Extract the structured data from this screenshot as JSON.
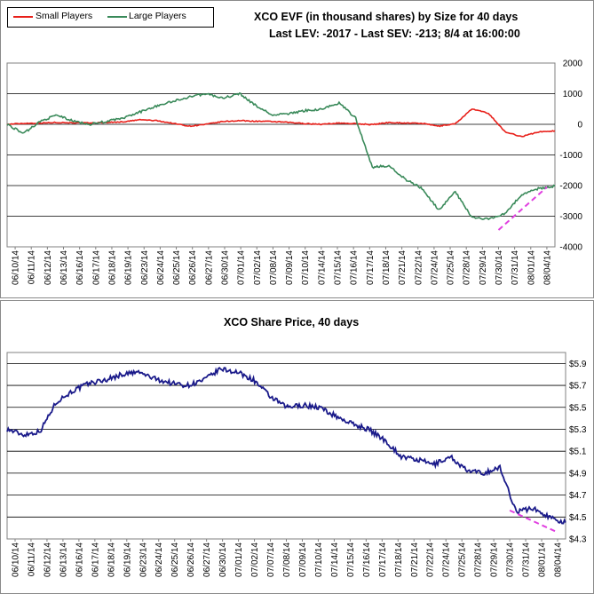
{
  "colors": {
    "small_players": "#e8201a",
    "large_players": "#3a8a5a",
    "share_price": "#1a1a8a",
    "trend": "#e040e0"
  },
  "chart_data": [
    {
      "type": "line",
      "title": "XCO EVF (in thousand shares) by Size for 40 days",
      "subtitle": "Last LEV: -2017 - Last SEV: -213; 8/4 at 16:00:00",
      "legend_position": "top-left",
      "grid": true,
      "ylim": [
        -4000,
        2000
      ],
      "yticks": [
        "2000",
        "1000",
        "0",
        "-1000",
        "-2000",
        "-3000",
        "-4000"
      ],
      "x": [
        "06/10/14",
        "06/11/14",
        "06/12/14",
        "06/13/14",
        "06/16/14",
        "06/17/14",
        "06/18/14",
        "06/19/14",
        "06/23/14",
        "06/24/14",
        "06/25/14",
        "06/26/14",
        "06/27/14",
        "06/30/14",
        "07/01/14",
        "07/02/14",
        "07/08/14",
        "07/09/14",
        "07/10/14",
        "07/14/14",
        "07/15/14",
        "07/16/14",
        "07/17/14",
        "07/18/14",
        "07/21/14",
        "07/22/14",
        "07/24/14",
        "07/25/14",
        "07/28/14",
        "07/29/14",
        "07/30/14",
        "07/31/14",
        "08/01/14",
        "08/04/14"
      ],
      "series": [
        {
          "name": "Small Players",
          "values": [
            0,
            30,
            40,
            60,
            50,
            40,
            60,
            80,
            150,
            120,
            30,
            -60,
            0,
            90,
            120,
            100,
            90,
            60,
            20,
            0,
            40,
            20,
            -10,
            60,
            40,
            30,
            -60,
            20,
            500,
            360,
            -250,
            -400,
            -250,
            -213
          ]
        },
        {
          "name": "Large Players",
          "values": [
            0,
            -300,
            100,
            300,
            100,
            0,
            100,
            200,
            400,
            600,
            750,
            900,
            1000,
            850,
            1000,
            600,
            300,
            350,
            450,
            500,
            700,
            200,
            -1400,
            -1350,
            -1800,
            -2100,
            -2800,
            -2200,
            -3050,
            -3100,
            -2900,
            -2300,
            -2100,
            -2017
          ]
        }
      ],
      "trendline": {
        "from": [
          "07/30/14",
          -3450
        ],
        "to": [
          "08/04/14",
          -2050
        ]
      }
    },
    {
      "type": "line",
      "title": "XCO Share Price, 40 days",
      "grid": true,
      "ylim": [
        4.3,
        6.0
      ],
      "yticks": [
        "$5.9",
        "$5.7",
        "$5.5",
        "$5.3",
        "$5.1",
        "$4.9",
        "$4.7",
        "$4.5",
        "$4.3"
      ],
      "x": [
        "06/10/14",
        "06/11/14",
        "06/12/14",
        "06/13/14",
        "06/16/14",
        "06/17/14",
        "06/18/14",
        "06/19/14",
        "06/23/14",
        "06/24/14",
        "06/25/14",
        "06/26/14",
        "06/27/14",
        "06/30/14",
        "07/01/14",
        "07/02/14",
        "07/07/14",
        "07/08/14",
        "07/09/14",
        "07/10/14",
        "07/14/14",
        "07/15/14",
        "07/16/14",
        "07/17/14",
        "07/18/14",
        "07/21/14",
        "07/22/14",
        "07/24/14",
        "07/25/14",
        "07/28/14",
        "07/29/14",
        "07/30/14",
        "07/31/14",
        "08/01/14",
        "08/04/14"
      ],
      "series": [
        {
          "name": "",
          "values": [
            5.3,
            5.25,
            5.28,
            5.55,
            5.65,
            5.72,
            5.75,
            5.8,
            5.82,
            5.76,
            5.72,
            5.7,
            5.75,
            5.85,
            5.82,
            5.75,
            5.6,
            5.5,
            5.52,
            5.5,
            5.42,
            5.35,
            5.3,
            5.2,
            5.05,
            5.02,
            4.98,
            5.05,
            4.92,
            4.9,
            4.95,
            4.55,
            4.58,
            4.5,
            4.45
          ]
        }
      ],
      "trendline": {
        "from": [
          "07/30/14",
          4.56
        ],
        "to": [
          "08/04/14",
          4.36
        ]
      }
    }
  ]
}
